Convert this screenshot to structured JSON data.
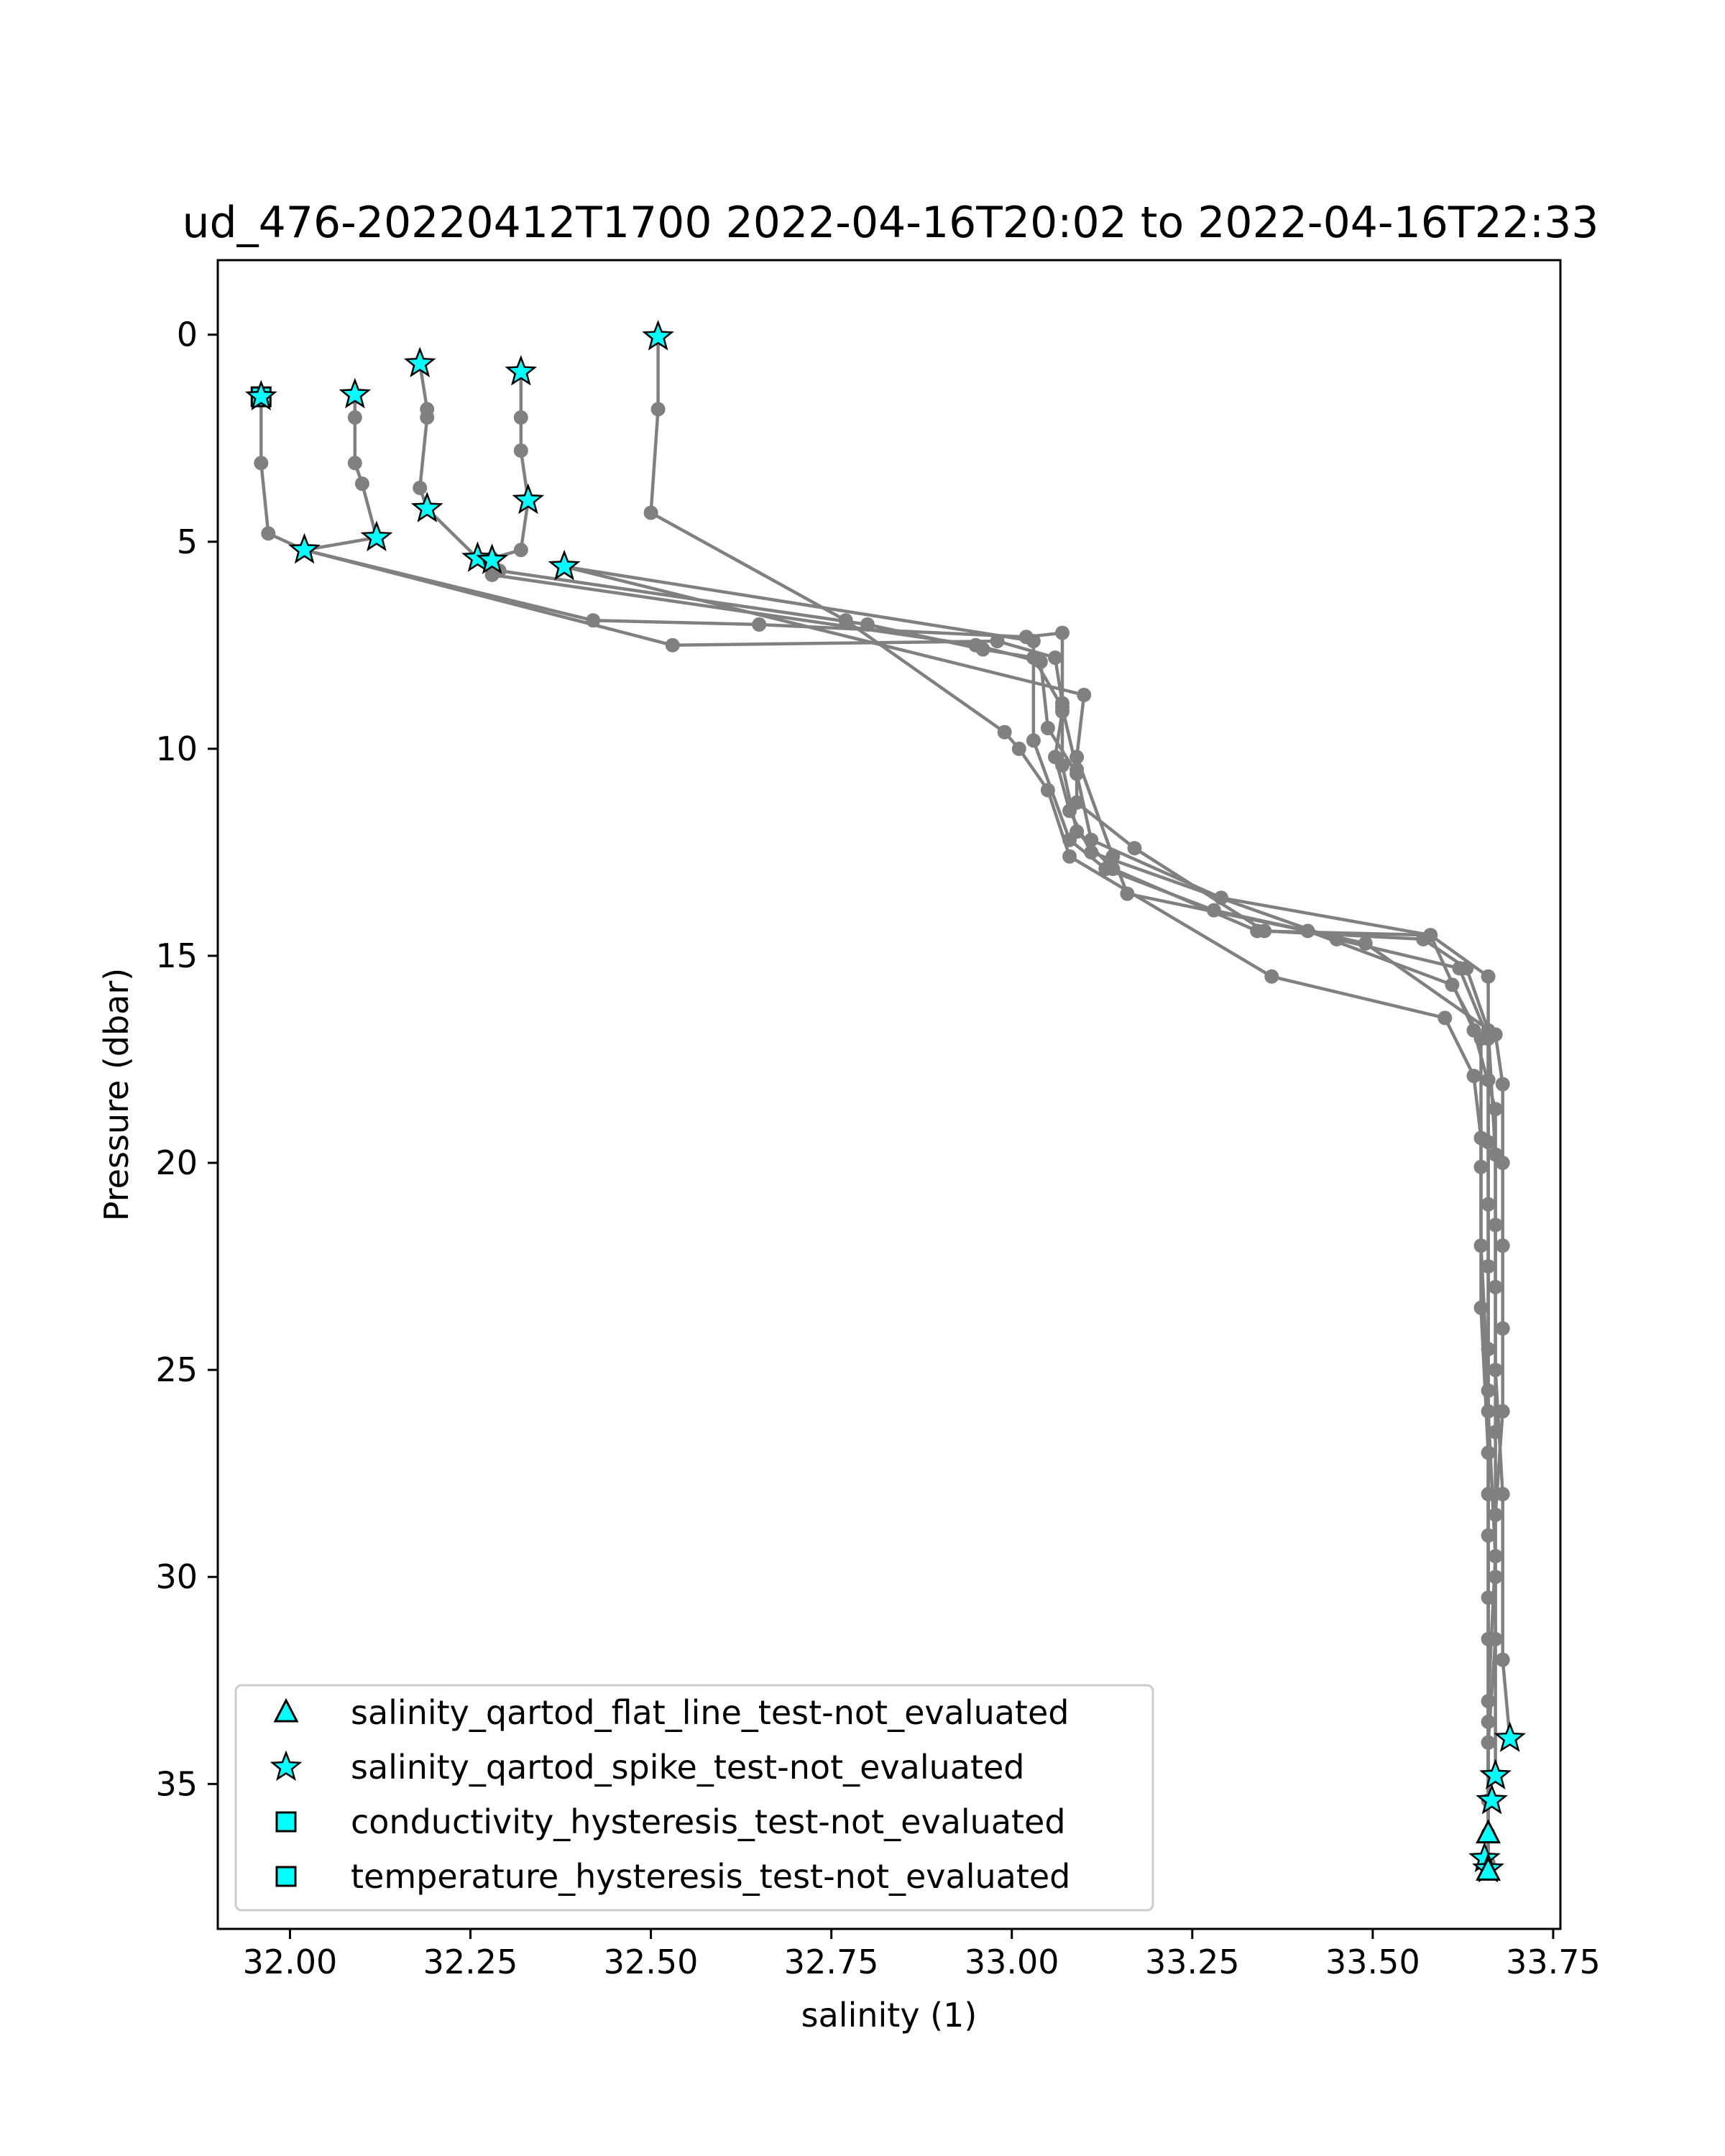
{
  "chart_data": {
    "type": "scatter",
    "title": "ud_476-20220412T1700 2022-04-16T20:02 to 2022-04-16T22:33",
    "xlabel": "salinity (1)",
    "ylabel": "Pressure (dbar)",
    "xlim": [
      31.9,
      33.76
    ],
    "ylim": [
      38.5,
      -1.8
    ],
    "y_inverted": true,
    "grid": false,
    "legend_position": "lower-left",
    "xticks": [
      32.0,
      32.25,
      32.5,
      32.75,
      33.0,
      33.25,
      33.5,
      33.75
    ],
    "xtick_labels": [
      "32.00",
      "32.25",
      "32.50",
      "32.75",
      "33.00",
      "33.25",
      "33.50",
      "33.75"
    ],
    "yticks": [
      0,
      5,
      10,
      15,
      20,
      25,
      30,
      35
    ],
    "ytick_labels": [
      "0",
      "5",
      "10",
      "15",
      "20",
      "25",
      "30",
      "35"
    ],
    "colors": {
      "profile_line": "#808080",
      "flag_fill": "#00ffff",
      "flag_edge": "#000000"
    },
    "profiles": [
      {
        "points": [
          [
            31.96,
            1.5
          ],
          [
            31.96,
            3.1
          ],
          [
            31.97,
            4.8
          ],
          [
            32.02,
            5.2
          ],
          [
            32.42,
            6.9
          ],
          [
            32.65,
            7.0
          ],
          [
            33.02,
            7.3
          ],
          [
            33.07,
            7.2
          ],
          [
            33.07,
            9.1
          ],
          [
            33.06,
            10.2
          ],
          [
            33.08,
            11.5
          ],
          [
            33.11,
            12.5
          ],
          [
            33.45,
            14.6
          ],
          [
            33.62,
            15.3
          ],
          [
            33.66,
            17.0
          ],
          [
            33.66,
            19.5
          ],
          [
            33.66,
            22.5
          ],
          [
            33.66,
            26.0
          ],
          [
            33.67,
            29.5
          ],
          [
            33.66,
            33.0
          ],
          [
            33.66,
            36.2
          ]
        ]
      },
      {
        "points": [
          [
            32.09,
            1.5
          ],
          [
            32.09,
            2.0
          ],
          [
            32.09,
            3.1
          ],
          [
            32.1,
            3.6
          ],
          [
            32.12,
            4.9
          ],
          [
            32.02,
            5.2
          ],
          [
            32.53,
            7.5
          ],
          [
            32.98,
            7.4
          ],
          [
            33.06,
            7.8
          ],
          [
            33.07,
            8.9
          ],
          [
            33.07,
            10.4
          ],
          [
            33.09,
            12.0
          ],
          [
            33.14,
            12.9
          ],
          [
            33.34,
            14.4
          ],
          [
            33.58,
            14.5
          ],
          [
            33.64,
            16.8
          ],
          [
            33.67,
            18.7
          ],
          [
            33.67,
            21.5
          ],
          [
            33.67,
            25.0
          ],
          [
            33.68,
            28.0
          ],
          [
            33.68,
            32.0
          ],
          [
            33.69,
            33.9
          ]
        ]
      },
      {
        "points": [
          [
            32.18,
            0.7
          ],
          [
            32.19,
            1.8
          ],
          [
            32.19,
            2.0
          ],
          [
            32.18,
            3.7
          ],
          [
            32.19,
            4.2
          ],
          [
            32.26,
            5.4
          ],
          [
            32.29,
            5.7
          ],
          [
            32.8,
            7.0
          ],
          [
            32.96,
            7.6
          ],
          [
            33.03,
            7.8
          ],
          [
            33.07,
            9.0
          ],
          [
            33.09,
            10.5
          ],
          [
            33.09,
            11.3
          ],
          [
            33.17,
            12.4
          ],
          [
            33.35,
            14.4
          ],
          [
            33.57,
            14.6
          ],
          [
            33.63,
            15.3
          ],
          [
            33.66,
            16.8
          ],
          [
            33.67,
            19.8
          ],
          [
            33.67,
            23.0
          ],
          [
            33.67,
            26.5
          ],
          [
            33.67,
            30.0
          ],
          [
            33.67,
            34.8
          ]
        ]
      },
      {
        "points": [
          [
            32.32,
            0.9
          ],
          [
            32.32,
            2.0
          ],
          [
            32.32,
            2.8
          ],
          [
            32.33,
            4.0
          ],
          [
            32.32,
            5.2
          ],
          [
            32.28,
            5.4
          ],
          [
            32.28,
            5.8
          ],
          [
            32.95,
            7.5
          ],
          [
            33.04,
            7.9
          ],
          [
            33.05,
            9.5
          ],
          [
            33.09,
            10.6
          ],
          [
            33.11,
            12.2
          ],
          [
            33.29,
            13.6
          ],
          [
            33.58,
            14.5
          ],
          [
            33.66,
            15.5
          ],
          [
            33.66,
            18.0
          ],
          [
            33.66,
            21.0
          ],
          [
            33.66,
            24.5
          ],
          [
            33.66,
            28.0
          ],
          [
            33.66,
            31.5
          ],
          [
            33.66,
            35.4
          ]
        ]
      },
      {
        "points": [
          [
            32.51,
            0.1
          ],
          [
            32.51,
            1.8
          ],
          [
            32.5,
            4.3
          ],
          [
            32.77,
            6.9
          ],
          [
            32.99,
            9.6
          ],
          [
            33.01,
            10.0
          ],
          [
            33.05,
            11.0
          ],
          [
            33.08,
            12.6
          ],
          [
            33.36,
            15.5
          ],
          [
            33.6,
            16.5
          ],
          [
            33.64,
            17.9
          ],
          [
            33.65,
            19.4
          ],
          [
            33.65,
            22.0
          ],
          [
            33.66,
            25.5
          ],
          [
            33.66,
            29.0
          ],
          [
            33.66,
            33.5
          ],
          [
            33.66,
            36.9
          ]
        ]
      },
      {
        "points": [
          [
            32.38,
            5.6
          ],
          [
            33.03,
            7.4
          ],
          [
            33.03,
            9.8
          ],
          [
            33.08,
            12.2
          ],
          [
            33.13,
            12.9
          ],
          [
            33.28,
            13.9
          ],
          [
            33.49,
            14.7
          ],
          [
            33.67,
            16.9
          ],
          [
            33.68,
            18.1
          ],
          [
            33.68,
            20.0
          ],
          [
            33.68,
            22.0
          ],
          [
            33.68,
            24.0
          ],
          [
            33.68,
            26.0
          ],
          [
            33.67,
            28.5
          ],
          [
            33.67,
            31.5
          ],
          [
            33.66,
            34.0
          ],
          [
            33.66,
            37.0
          ]
        ]
      },
      {
        "points": [
          [
            32.38,
            5.6
          ],
          [
            33.1,
            8.7
          ],
          [
            33.09,
            10.2
          ],
          [
            33.14,
            12.6
          ],
          [
            33.16,
            13.5
          ],
          [
            33.41,
            14.4
          ],
          [
            33.61,
            15.7
          ],
          [
            33.65,
            17.0
          ],
          [
            33.65,
            20.1
          ],
          [
            33.65,
            23.5
          ],
          [
            33.66,
            27.0
          ],
          [
            33.66,
            30.5
          ],
          [
            33.66,
            34.0
          ],
          [
            33.66,
            37.0
          ]
        ]
      }
    ],
    "flags": [
      {
        "series": "temperature_hysteresis_test-not_evaluated",
        "marker": "square",
        "x": 31.96,
        "y": 1.5
      },
      {
        "series": "salinity_qartod_spike_test-not_evaluated",
        "marker": "star",
        "x": 31.96,
        "y": 1.5
      },
      {
        "series": "salinity_qartod_spike_test-not_evaluated",
        "marker": "star",
        "x": 32.09,
        "y": 1.45
      },
      {
        "series": "salinity_qartod_spike_test-not_evaluated",
        "marker": "star",
        "x": 32.18,
        "y": 0.7
      },
      {
        "series": "salinity_qartod_spike_test-not_evaluated",
        "marker": "star",
        "x": 32.32,
        "y": 0.9
      },
      {
        "series": "salinity_qartod_spike_test-not_evaluated",
        "marker": "star",
        "x": 32.51,
        "y": 0.05
      },
      {
        "series": "salinity_qartod_spike_test-not_evaluated",
        "marker": "star",
        "x": 32.33,
        "y": 4.0
      },
      {
        "series": "salinity_qartod_spike_test-not_evaluated",
        "marker": "star",
        "x": 32.19,
        "y": 4.2
      },
      {
        "series": "salinity_qartod_spike_test-not_evaluated",
        "marker": "star",
        "x": 32.12,
        "y": 4.9
      },
      {
        "series": "salinity_qartod_spike_test-not_evaluated",
        "marker": "star",
        "x": 32.02,
        "y": 5.2
      },
      {
        "series": "salinity_qartod_spike_test-not_evaluated",
        "marker": "star",
        "x": 32.26,
        "y": 5.4
      },
      {
        "series": "salinity_qartod_spike_test-not_evaluated",
        "marker": "star",
        "x": 32.28,
        "y": 5.45
      },
      {
        "series": "salinity_qartod_spike_test-not_evaluated",
        "marker": "star",
        "x": 32.38,
        "y": 5.6
      },
      {
        "series": "salinity_qartod_spike_test-not_evaluated",
        "marker": "star",
        "x": 33.69,
        "y": 33.9
      },
      {
        "series": "salinity_qartod_spike_test-not_evaluated",
        "marker": "star",
        "x": 33.67,
        "y": 34.8
      },
      {
        "series": "salinity_qartod_spike_test-not_evaluated",
        "marker": "star",
        "x": 33.665,
        "y": 35.4
      },
      {
        "series": "salinity_qartod_flat_line_test-not_evaluated",
        "marker": "triangle",
        "x": 33.66,
        "y": 36.2
      },
      {
        "series": "salinity_qartod_spike_test-not_evaluated",
        "marker": "star",
        "x": 33.655,
        "y": 36.8
      },
      {
        "series": "salinity_qartod_spike_test-not_evaluated",
        "marker": "star",
        "x": 33.66,
        "y": 37.05
      },
      {
        "series": "salinity_qartod_flat_line_test-not_evaluated",
        "marker": "triangle",
        "x": 33.66,
        "y": 37.1
      }
    ],
    "legend": [
      {
        "label": "salinity_qartod_flat_line_test-not_evaluated",
        "marker": "triangle"
      },
      {
        "label": "salinity_qartod_spike_test-not_evaluated",
        "marker": "star"
      },
      {
        "label": "conductivity_hysteresis_test-not_evaluated",
        "marker": "square"
      },
      {
        "label": "temperature_hysteresis_test-not_evaluated",
        "marker": "square"
      }
    ]
  }
}
